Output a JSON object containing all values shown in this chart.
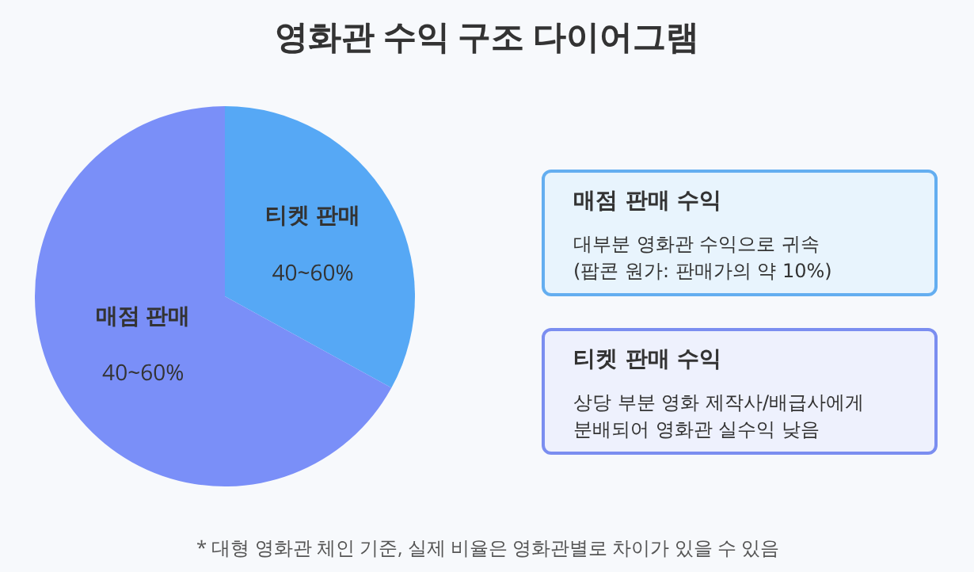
{
  "chart_data": [
    {
      "type": "pie",
      "title": "영화관 수익 구조 다이어그램",
      "categories": [
        "티켓 판매",
        "매점 판매"
      ],
      "values": [
        33,
        67
      ],
      "colors": [
        "#56a8f5",
        "#7a8ff8"
      ],
      "legend": false,
      "annotations": [
        "40~60%",
        "40~60%",
        "* 대형 영화관 체인 기준, 실제 비율은 영화관별로 차이가 있을 수 있음"
      ]
    },
    {
      "type": "other",
      "annotations": [
        "매점 판매 수익",
        "대부분 영화관 수익으로 귀속\n(팝콘 원가: 판매가의 약 10%)",
        "티켓 판매 수익",
        "상당 부분 영화 제작사/배급사에게\n분배되어 영화관 실수익 낮음"
      ]
    }
  ]
}
